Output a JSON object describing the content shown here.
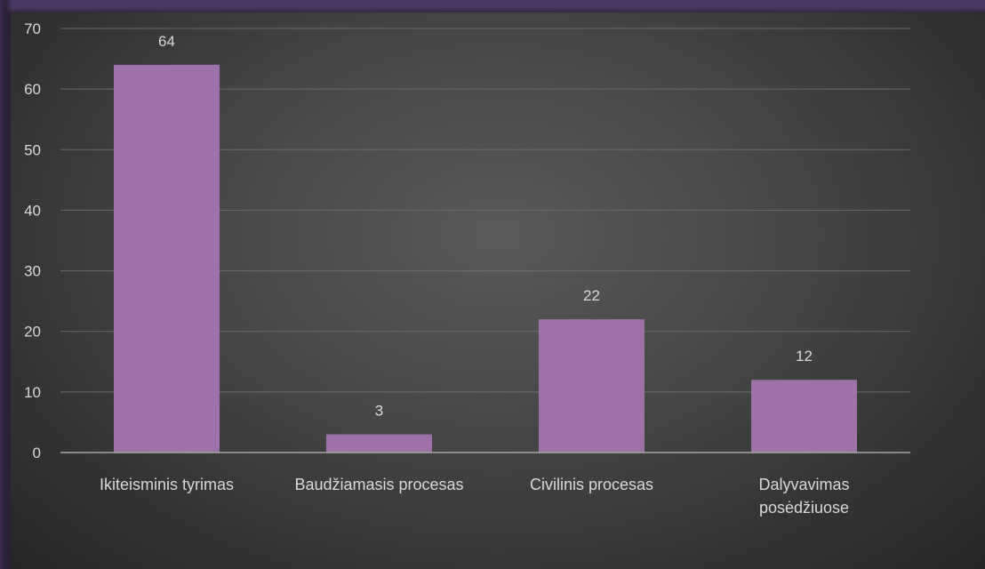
{
  "chart_data": {
    "type": "bar",
    "title": "",
    "xlabel": "",
    "ylabel": "",
    "categories": [
      "Ikiteisminis tyrimas",
      "Baudžiamasis procesas",
      "Civilinis procesas",
      "Dalyvavimas posėdžiuose"
    ],
    "category_lines": [
      [
        "Ikiteisminis tyrimas"
      ],
      [
        "Baudžiamasis procesas"
      ],
      [
        "Civilinis procesas"
      ],
      [
        "Dalyvavimas",
        "posėdžiuose"
      ]
    ],
    "values": [
      64,
      3,
      22,
      12
    ],
    "ylim": [
      0,
      70
    ],
    "yticks": [
      0,
      10,
      20,
      30,
      40,
      50,
      60,
      70
    ],
    "grid": true,
    "legend": "none",
    "bar_color": "#9e72a8",
    "grid_color": "#6b6b6b",
    "axis_color": "#a6a6a6",
    "text_color": "#d9d9d9"
  }
}
